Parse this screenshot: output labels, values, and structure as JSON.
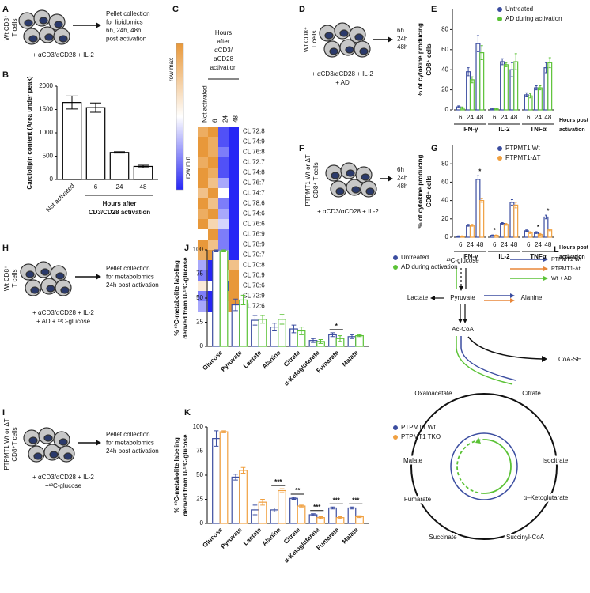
{
  "chart_data": [
    {
      "panel": "B",
      "type": "bar",
      "categories": [
        "Not activated",
        "6",
        "24",
        "48"
      ],
      "values": [
        1650,
        1540,
        580,
        280
      ],
      "errors": [
        140,
        100,
        15,
        25
      ],
      "color": "#000000",
      "ylabel": [
        "Cardiolipin content (Area under peak)"
      ],
      "xlabel": [
        "Hours after",
        "CD3/CD28 activation"
      ],
      "ylim": [
        0,
        2000
      ],
      "yticks": [
        0,
        500,
        1000,
        1500,
        2000
      ]
    },
    {
      "panel": "C",
      "type": "heatmap",
      "column_header": [
        "Hours",
        "after",
        "αCD3/",
        "αCD28",
        "activation"
      ],
      "columns": [
        "Not activated",
        "6",
        "24",
        "48"
      ],
      "rows": [
        "CL 72:8",
        "CL 74:9",
        "CL 76:8",
        "CL 72:7",
        "CL 74:8",
        "CL 76:7",
        "CL 74:7",
        "CL 78:6",
        "CL 74:6",
        "CL 76:6",
        "CL 76:9",
        "CL 78:9",
        "CL 70:7",
        "CL 70:8",
        "CL 70:9",
        "CL 70:6",
        "CL 72:9",
        "CL 72:6"
      ],
      "values": [
        [
          0.9,
          1,
          0.1,
          0
        ],
        [
          1,
          0.9,
          0.1,
          0
        ],
        [
          1,
          0.9,
          0.2,
          0
        ],
        [
          0.9,
          1,
          0.1,
          0
        ],
        [
          1,
          0.9,
          0.1,
          0
        ],
        [
          1,
          0.8,
          0.3,
          0
        ],
        [
          0.8,
          1,
          0.5,
          0
        ],
        [
          1,
          0.8,
          0.2,
          0
        ],
        [
          0.9,
          1,
          0.3,
          0
        ],
        [
          1,
          0.7,
          0.4,
          0
        ],
        [
          0.5,
          1,
          0.2,
          0
        ],
        [
          1,
          0.8,
          0.2,
          0
        ],
        [
          0.9,
          1,
          0.3,
          0
        ],
        [
          0.3,
          0,
          1,
          0.8
        ],
        [
          0.2,
          0,
          0.6,
          1
        ],
        [
          0.6,
          0.5,
          0,
          1
        ],
        [
          0.2,
          0,
          0.9,
          1
        ],
        [
          0.3,
          0,
          0.8,
          1
        ]
      ],
      "vlim": [
        0,
        1
      ],
      "colors": [
        "#2626f5",
        "#ffffff",
        "#e8983a"
      ],
      "scale_labels": [
        "row max",
        "row min"
      ]
    },
    {
      "panel": "E",
      "type": "bar",
      "groups": [
        "IFN-γ",
        "IL-2",
        "TNFα"
      ],
      "categories": [
        "6",
        "24",
        "48",
        "6",
        "24",
        "48",
        "6",
        "24",
        "48"
      ],
      "series": [
        {
          "name": "Untreated",
          "color": "#3b4da0",
          "values": [
            3,
            38,
            66,
            1,
            48,
            40,
            15,
            22,
            42
          ],
          "errors": [
            1,
            4,
            8,
            1,
            3,
            7,
            2,
            2,
            5
          ]
        },
        {
          "name": "AD during activation",
          "color": "#5bc236",
          "values": [
            2,
            30,
            57,
            1,
            45,
            48,
            14,
            22,
            47
          ],
          "errors": [
            1,
            3,
            7,
            1,
            2,
            8,
            2,
            2,
            5
          ]
        }
      ],
      "ylabel": [
        "% of cytokine producing",
        "CD8⁺ cells"
      ],
      "xlabel": [
        "Hours post",
        "activation"
      ],
      "ylim": [
        0,
        100
      ],
      "yticks": [
        0,
        20,
        40,
        60,
        80
      ]
    },
    {
      "panel": "G",
      "type": "bar",
      "groups": [
        "IFN-γ",
        "IL-2",
        "TNFα"
      ],
      "categories": [
        "6",
        "24",
        "48",
        "6",
        "24",
        "48",
        "6",
        "24",
        "48"
      ],
      "series": [
        {
          "name": "PTPMT1 Wt",
          "color": "#3b4da0",
          "values": [
            1,
            13,
            63,
            2,
            15,
            38,
            7,
            5,
            22
          ],
          "errors": [
            0.5,
            1,
            4,
            0.5,
            1,
            3,
            1,
            1,
            2
          ]
        },
        {
          "name": "PTPMT1-ΔT",
          "color": "#f0a040",
          "values": [
            1,
            13,
            40,
            2,
            14,
            35,
            5,
            3,
            8
          ],
          "errors": [
            0.5,
            1,
            2,
            0.5,
            1,
            3,
            1,
            1,
            1
          ]
        }
      ],
      "significance": [
        null,
        null,
        "*",
        "*",
        null,
        null,
        null,
        "*",
        "*"
      ],
      "ylabel": [
        "% of cytokine producing",
        "CD8⁺ cells"
      ],
      "xlabel": [
        "Hours post",
        "activation"
      ],
      "ylim": [
        0,
        100
      ],
      "yticks": [
        0,
        20,
        40,
        60,
        80
      ]
    },
    {
      "panel": "J",
      "type": "bar",
      "categories": [
        "Glucose",
        "Pyruvate",
        "Lactate",
        "Alanine",
        "Citrate",
        "α-Ketoglutarate",
        "Fumarate",
        "Malate"
      ],
      "series": [
        {
          "name": "Untreated",
          "color": "#3b4da0",
          "values": [
            99,
            43,
            27,
            20,
            18,
            6,
            12,
            10
          ],
          "errors": [
            1,
            6,
            5,
            4,
            4,
            2,
            2,
            2
          ]
        },
        {
          "name": "AD during activation",
          "color": "#5bc236",
          "values": [
            99,
            48,
            28,
            28,
            16,
            5,
            8,
            11
          ],
          "errors": [
            1,
            5,
            4,
            5,
            4,
            2,
            3,
            1
          ]
        }
      ],
      "significance": [
        null,
        null,
        null,
        null,
        null,
        null,
        "*",
        null
      ],
      "ylabel": [
        "% ¹³C-metabolite labeling",
        "derived from U-¹³C-glucose"
      ],
      "ylim": [
        0,
        100
      ],
      "yticks": [
        0,
        25,
        50,
        75,
        100
      ]
    },
    {
      "panel": "K",
      "type": "bar",
      "categories": [
        "Glucose",
        "Pyruvate",
        "Lactate",
        "Alanine",
        "Citrate",
        "α-Ketoglutarate",
        "Fumarate",
        "Malate"
      ],
      "series": [
        {
          "name": "PTPMT1 Wt",
          "color": "#3b4da0",
          "values": [
            88,
            48,
            14,
            14,
            26,
            9,
            16,
            16
          ],
          "errors": [
            8,
            3,
            5,
            2,
            1,
            1,
            1,
            1
          ]
        },
        {
          "name": "PTPMT1 TKO",
          "color": "#f0a040",
          "values": [
            95,
            55,
            22,
            34,
            18,
            6,
            6,
            7
          ],
          "errors": [
            1,
            3,
            3,
            2,
            1,
            1,
            1,
            1
          ]
        }
      ],
      "significance": [
        null,
        null,
        null,
        "***",
        "**",
        "***",
        "***",
        "***"
      ],
      "ylabel": [
        "% ¹³C-metabolite labeling",
        "derived from U-¹³C-glucose"
      ],
      "ylim": [
        0,
        100
      ],
      "yticks": [
        0,
        25,
        50,
        75,
        100
      ]
    }
  ],
  "diagrams": {
    "A": {
      "panel": "A",
      "cells": [
        "Wt CD8⁺",
        "T cells"
      ],
      "outcome": [
        "Pellet collection",
        "for lipidomics",
        "6h, 24h, 48h",
        "post activation"
      ],
      "treatment": [
        "+ αCD3/αCD28 + IL-2"
      ]
    },
    "D": {
      "panel": "D",
      "cells": [
        "Wt CD8⁺",
        "T cells"
      ],
      "outcome": [
        "6h",
        "24h",
        "48h"
      ],
      "treatment": [
        "+ αCD3/αCD28 + IL-2",
        "+ AD"
      ]
    },
    "F": {
      "panel": "F",
      "cells": [
        "PTPMT1 Wt or ΔT",
        "CD8⁺ T cells"
      ],
      "outcome": [
        "6h",
        "24h",
        "48h"
      ],
      "treatment": [
        "+ αCD3/αCD28 + IL-2"
      ]
    },
    "H": {
      "panel": "H",
      "cells": [
        "Wt CD8⁺",
        "T cells"
      ],
      "outcome": [
        "Pellet collection",
        "for metabolomics",
        "24h post activation"
      ],
      "treatment": [
        "+ αCD3/αCD28 + IL-2",
        "+ AD + ¹³C-glucose"
      ]
    },
    "I": {
      "panel": "I",
      "cells": [
        "PTPMT1 Wt or ΔT",
        "CD8⁺T cells"
      ],
      "outcome": [
        "Pellet collection",
        "for metabolomics",
        "24h post activation"
      ],
      "treatment": [
        "+ αCD3/αCD28 + IL-2",
        "+¹³C-glucose"
      ]
    }
  },
  "pathway": {
    "panel": "L",
    "legend": [
      {
        "name": "PTPMT1 Wt",
        "color": "#3b4da0"
      },
      {
        "name": "PTPMT1-Δt",
        "color": "#e8873a"
      },
      {
        "name": "Wt + AD",
        "color": "#5bc236"
      }
    ],
    "nodes": [
      "¹³C-glucose",
      "Pyruvate",
      "Lactate",
      "Alanine",
      "Ac-CoA",
      "CoA-SH",
      "Oxaloacetate",
      "Citrate",
      "Isocitrate",
      "α–Ketoglutarate",
      "Succinyl-CoA",
      "Succinate",
      "Fumarate",
      "Malate"
    ]
  }
}
